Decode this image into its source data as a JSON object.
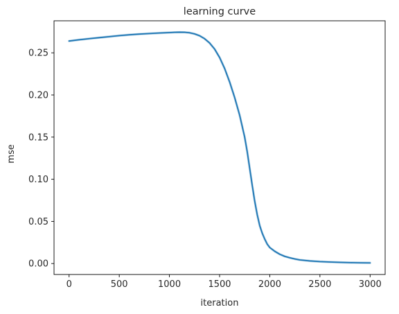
{
  "chart_data": {
    "type": "line",
    "title": "learning curve",
    "xlabel": "iteration",
    "ylabel": "mse",
    "xlim": [
      -150,
      3150
    ],
    "ylim": [
      -0.013,
      0.288
    ],
    "xticks": [
      0,
      500,
      1000,
      1500,
      2000,
      2500,
      3000
    ],
    "xtick_labels": [
      "0",
      "500",
      "1000",
      "1500",
      "2000",
      "2500",
      "3000"
    ],
    "yticks": [
      0.0,
      0.05,
      0.1,
      0.15,
      0.2,
      0.25
    ],
    "ytick_labels": [
      "0.00",
      "0.05",
      "0.10",
      "0.15",
      "0.20",
      "0.25"
    ],
    "grid": false,
    "series": [
      {
        "color": "#1f77b4",
        "x": [
          0,
          100,
          200,
          300,
          400,
          500,
          600,
          700,
          800,
          900,
          1000,
          1050,
          1100,
          1150,
          1200,
          1250,
          1300,
          1350,
          1400,
          1450,
          1500,
          1550,
          1600,
          1650,
          1700,
          1750,
          1775,
          1800,
          1825,
          1850,
          1875,
          1900,
          1925,
          1950,
          1975,
          2000,
          2050,
          2100,
          2150,
          2200,
          2250,
          2300,
          2400,
          2500,
          2600,
          2700,
          2800,
          2900,
          3000
        ],
        "y": [
          0.264,
          0.2655,
          0.2668,
          0.268,
          0.2692,
          0.2704,
          0.2714,
          0.2722,
          0.2729,
          0.2735,
          0.274,
          0.2743,
          0.2745,
          0.2744,
          0.2738,
          0.2725,
          0.2703,
          0.2668,
          0.2617,
          0.2545,
          0.2445,
          0.2315,
          0.2155,
          0.197,
          0.176,
          0.15,
          0.133,
          0.113,
          0.093,
          0.074,
          0.058,
          0.045,
          0.036,
          0.029,
          0.023,
          0.019,
          0.0145,
          0.011,
          0.0085,
          0.0068,
          0.0054,
          0.0043,
          0.0031,
          0.0023,
          0.0018,
          0.0014,
          0.0011,
          0.0009,
          0.0008
        ]
      }
    ]
  }
}
